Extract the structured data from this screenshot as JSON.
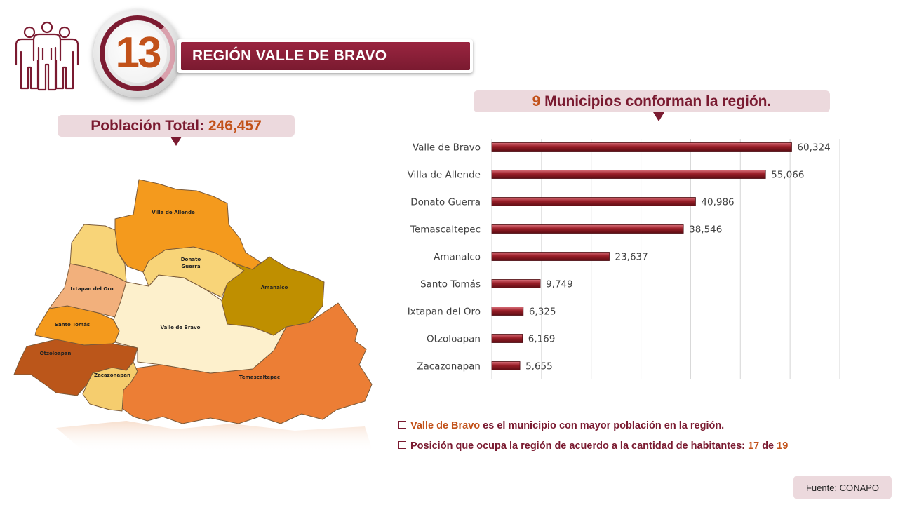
{
  "header": {
    "region_number": "13",
    "region_title": "REGIÓN VALLE DE BRAVO",
    "people_icon": "people-group-icon",
    "accent_color": "#7a1a30",
    "highlight_color": "#c2521a"
  },
  "population": {
    "label": "Población Total:",
    "value": "246,457"
  },
  "municipalities_header": {
    "count": "9",
    "text": "Municipios conforman la región."
  },
  "map": {
    "labels": {
      "villa_de_allende": "Villa de Allende",
      "donato_guerra_1": "Donato",
      "donato_guerra_2": "Guerra",
      "amanalco": "Amanalco",
      "ixtapan_del_oro": "Ixtapan del Oro",
      "santo_tomas": "Santo Tomás",
      "valle_de_bravo": "Valle de Bravo",
      "otzoloapan": "Otzoloapan",
      "zacazonapan": "Zacazonapan",
      "temascaltepec": "Temascaltepec"
    }
  },
  "chart_data": {
    "type": "bar",
    "orientation": "horizontal",
    "categories": [
      "Valle de Bravo",
      "Villa de Allende",
      "Donato Guerra",
      "Temascaltepec",
      "Amanalco",
      "Santo Tomás",
      "Ixtapan del Oro",
      "Otzoloapan",
      "Zacazonapan"
    ],
    "values": [
      60324,
      55066,
      40986,
      38546,
      23637,
      9749,
      6325,
      6169,
      5655
    ],
    "value_labels": [
      "60,324",
      "55,066",
      "40,986",
      "38,546",
      "23,637",
      "9,749",
      "6,325",
      "6,169",
      "5,655"
    ],
    "xlim": [
      0,
      70000
    ],
    "grid": true,
    "bar_color": "#8b1a22"
  },
  "notes": {
    "note1_highlight": "Valle de Bravo",
    "note1_text": " es el municipio con mayor población en la región.",
    "note2_text": "Posición que ocupa la región de acuerdo a la cantidad de habitantes: ",
    "note2_position": "17",
    "note2_of": " de ",
    "note2_total": "19"
  },
  "source": "Fuente: CONAPO"
}
